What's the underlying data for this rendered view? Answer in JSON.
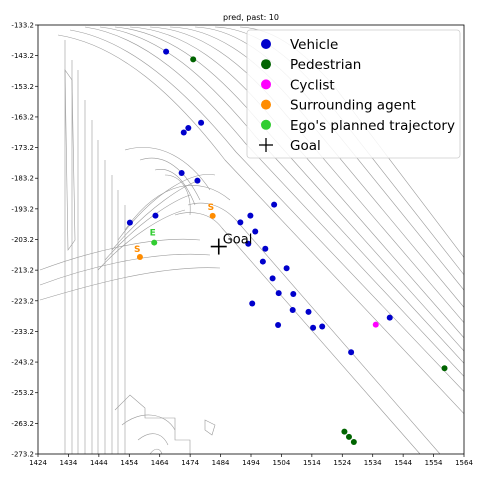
{
  "chart_data": {
    "type": "scatter",
    "title": "pred, past: 10",
    "xlabel": "",
    "ylabel": "",
    "xlim": [
      1424,
      1564
    ],
    "ylim": [
      -273.2,
      -133.2
    ],
    "x_ticks": [
      "1424",
      "1434",
      "1444",
      "1454",
      "1464",
      "1474",
      "1484",
      "1494",
      "1504",
      "1514",
      "1524",
      "1534",
      "1544",
      "1554",
      "1564"
    ],
    "y_ticks": [
      "-133.2",
      "-143.2",
      "-153.2",
      "-163.2",
      "-173.2",
      "-183.2",
      "-193.2",
      "-203.2",
      "-213.2",
      "-223.2",
      "-233.2",
      "-243.2",
      "-253.2",
      "-263.2",
      "-273.2"
    ],
    "grid": false,
    "legend_position": "top-right",
    "legend": [
      {
        "label": "Vehicle",
        "color": "#0000cc",
        "marker": "circle"
      },
      {
        "label": "Pedestrian",
        "color": "#006400",
        "marker": "circle"
      },
      {
        "label": "Cyclist",
        "color": "#ff00ff",
        "marker": "circle"
      },
      {
        "label": "Surrounding agent",
        "color": "#ff8c00",
        "marker": "circle"
      },
      {
        "label": "Ego's planned trajectory",
        "color": "#32cd32",
        "marker": "circle"
      },
      {
        "label": "Goal",
        "color": "#000000",
        "marker": "plus"
      }
    ],
    "series": [
      {
        "name": "Vehicle",
        "color": "#0000cc",
        "points": [
          [
            1466.1,
            -141.9
          ],
          [
            1471.9,
            -168.3
          ],
          [
            1473.4,
            -166.8
          ],
          [
            1477.6,
            -165.1
          ],
          [
            1471.2,
            -181.5
          ],
          [
            1476.4,
            -184.0
          ],
          [
            1454.2,
            -197.7
          ],
          [
            1462.6,
            -195.4
          ],
          [
            1493.8,
            -195.4
          ],
          [
            1490.5,
            -197.6
          ],
          [
            1501.6,
            -191.8
          ],
          [
            1495.4,
            -200.6
          ],
          [
            1493.1,
            -204.6
          ],
          [
            1498.7,
            -206.2
          ],
          [
            1497.9,
            -210.4
          ],
          [
            1501.1,
            -215.9
          ],
          [
            1505.7,
            -212.6
          ],
          [
            1503.1,
            -220.7
          ],
          [
            1507.9,
            -221.0
          ],
          [
            1507.7,
            -226.2
          ],
          [
            1512.9,
            -226.8
          ],
          [
            1517.4,
            -231.6
          ],
          [
            1514.4,
            -232.0
          ],
          [
            1502.9,
            -231.1
          ],
          [
            1494.4,
            -224.1
          ],
          [
            1526.9,
            -240.0
          ],
          [
            1539.6,
            -228.7
          ]
        ]
      },
      {
        "name": "Pedestrian",
        "color": "#006400",
        "points": [
          [
            1475.0,
            -144.4
          ],
          [
            1524.7,
            -265.9
          ],
          [
            1526.2,
            -267.6
          ],
          [
            1527.8,
            -269.3
          ],
          [
            1557.6,
            -245.2
          ]
        ]
      },
      {
        "name": "Cyclist",
        "color": "#ff00ff",
        "points": [
          [
            1535.0,
            -231.0
          ]
        ]
      },
      {
        "name": "Surrounding agent",
        "color": "#ff8c00",
        "points": [
          [
            1481.4,
            -195.5
          ],
          [
            1457.5,
            -208.9
          ]
        ]
      },
      {
        "name": "Ego's planned trajectory",
        "color": "#32cd32",
        "points": [
          [
            1462.2,
            -204.2
          ]
        ]
      }
    ],
    "agent_labels": [
      {
        "text": "S",
        "x": 1480.8,
        "y": -193.6,
        "color": "#ff8c00"
      },
      {
        "text": "S",
        "x": 1456.6,
        "y": -207.3,
        "color": "#ff8c00"
      },
      {
        "text": "E",
        "x": 1461.7,
        "y": -201.9,
        "color": "#32cd32"
      }
    ],
    "goal": {
      "label": "Goal",
      "x": 1483.4,
      "y": -205.5
    }
  }
}
